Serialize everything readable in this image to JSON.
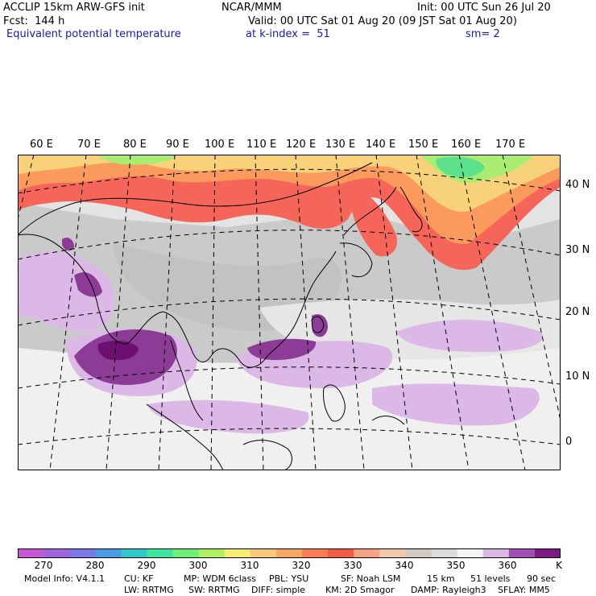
{
  "header": {
    "model": "ACCLIP 15km ARW-GFS init",
    "forecast": "Fcst:  144 h",
    "field": "Equivalent potential temperature",
    "center": "NCAR/MMM",
    "init": "Init: 00 UTC Sun 26 Jul 20",
    "valid": "Valid: 00 UTC Sat 01 Aug 20 (09 JST Sat 01 Aug 20)",
    "level": "at k-index =  51",
    "smoothing": "sm= 2"
  },
  "map": {
    "lon_labels": [
      "60 E",
      "70 E",
      "80 E",
      "90 E",
      "100 E",
      "110 E",
      "120 E",
      "130 E",
      "140 E",
      "150 E",
      "160 E",
      "170 E"
    ],
    "lat_labels": [
      "40 N",
      "30 N",
      "20 N",
      "10 N",
      "0"
    ],
    "colors": {
      "dry_high": "#fdd8b5",
      "grey": "#c6c6c6",
      "light_grey": "#e0e0e0",
      "near_white": "#f0f0f0",
      "lavender": "#dcb8e6",
      "purple": "#8c3c96",
      "dark_purple": "#6c1070",
      "orange_red": "#f4604a",
      "orange": "#fa9a5c",
      "yellow": "#f8e27c",
      "green": "#9cf06e",
      "coastline": "#000000"
    }
  },
  "colorbar": {
    "colors": [
      "#c855d2",
      "#a064dc",
      "#7c78e6",
      "#4a9ae6",
      "#30c8c8",
      "#3ce6a0",
      "#6ef078",
      "#aef060",
      "#f6ef74",
      "#f8c878",
      "#f7a860",
      "#f87c54",
      "#f25c44",
      "#f6a284",
      "#f4c8aa",
      "#d2c8c4",
      "#dcdcdc",
      "#f4f4f4",
      "#ddb8e6",
      "#a050b4",
      "#7c1a84"
    ],
    "tick_labels": [
      "270",
      "280",
      "290",
      "300",
      "310",
      "320",
      "330",
      "340",
      "350",
      "360"
    ],
    "unit": "K"
  },
  "footer": {
    "line1": [
      "Model Info: V4.1.1",
      "CU: KF",
      "MP: WDM 6class",
      "PBL: YSU",
      "SF: Noah LSM",
      "15 km",
      "51 levels",
      "90 sec"
    ],
    "line2": [
      "LW: RRTMG",
      "SW: RRTMG",
      "DIFF: simple",
      "KM: 2D Smagor",
      "DAMP: Rayleigh3",
      "SFLAY: MM5"
    ]
  }
}
